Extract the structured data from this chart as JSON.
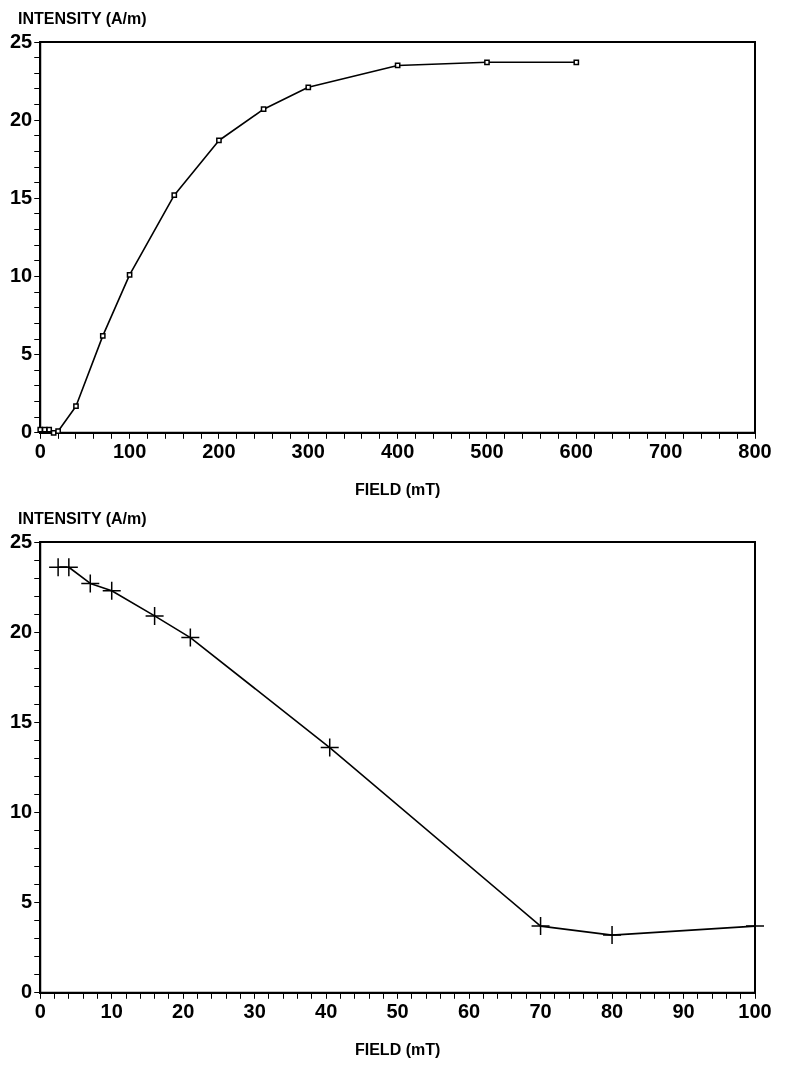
{
  "chart_data": [
    {
      "type": "line",
      "xlabel": "FIELD (mT)",
      "ylabel": "INTENSITY (A/m)",
      "marker": "square",
      "line_style": "solid",
      "grid": false,
      "legend": false,
      "x": [
        0,
        5,
        10,
        15,
        20,
        40,
        70,
        100,
        150,
        200,
        250,
        300,
        400,
        500,
        600
      ],
      "series": [
        {
          "color": "#000000",
          "values": [
            0.2,
            0.2,
            0.2,
            0.0,
            0.1,
            1.7,
            6.2,
            10.1,
            15.2,
            18.7,
            20.7,
            22.1,
            23.5,
            23.7,
            23.7
          ]
        }
      ],
      "xlim": [
        0,
        800
      ],
      "ylim": [
        0,
        25
      ],
      "xticks": [
        0,
        {
          "value": 20,
          "label": null
        },
        {
          "value": 40,
          "label": null
        },
        {
          "value": 60,
          "label": null
        },
        {
          "value": 80,
          "label": null
        },
        100,
        {
          "value": 120,
          "label": null
        },
        {
          "value": 140,
          "label": null
        },
        {
          "value": 160,
          "label": null
        },
        {
          "value": 180,
          "label": null
        },
        200,
        {
          "value": 220,
          "label": null
        },
        {
          "value": 240,
          "label": null
        },
        {
          "value": 260,
          "label": null
        },
        {
          "value": 280,
          "label": null
        },
        300,
        {
          "value": 320,
          "label": null
        },
        {
          "value": 340,
          "label": null
        },
        {
          "value": 360,
          "label": null
        },
        {
          "value": 380,
          "label": null
        },
        400,
        {
          "value": 420,
          "label": null
        },
        {
          "value": 440,
          "label": null
        },
        {
          "value": 460,
          "label": null
        },
        {
          "value": 480,
          "label": null
        },
        500,
        {
          "value": 520,
          "label": null
        },
        {
          "value": 540,
          "label": null
        },
        {
          "value": 560,
          "label": null
        },
        {
          "value": 580,
          "label": null
        },
        600,
        {
          "value": 620,
          "label": null
        },
        {
          "value": 640,
          "label": null
        },
        {
          "value": 660,
          "label": null
        },
        {
          "value": 680,
          "label": null
        },
        700,
        {
          "value": 720,
          "label": null
        },
        {
          "value": 740,
          "label": null
        },
        {
          "value": 760,
          "label": null
        },
        {
          "value": 780,
          "label": null
        },
        800
      ],
      "yticks": [
        0,
        {
          "value": 1,
          "label": null
        },
        {
          "value": 2,
          "label": null
        },
        {
          "value": 3,
          "label": null
        },
        {
          "value": 4,
          "label": null
        },
        5,
        {
          "value": 6,
          "label": null
        },
        {
          "value": 7,
          "label": null
        },
        {
          "value": 8,
          "label": null
        },
        {
          "value": 9,
          "label": null
        },
        10,
        {
          "value": 11,
          "label": null
        },
        {
          "value": 12,
          "label": null
        },
        {
          "value": 13,
          "label": null
        },
        {
          "value": 14,
          "label": null
        },
        15,
        {
          "value": 16,
          "label": null
        },
        {
          "value": 17,
          "label": null
        },
        {
          "value": 18,
          "label": null
        },
        {
          "value": 19,
          "label": null
        },
        20,
        {
          "value": 21,
          "label": null
        },
        {
          "value": 22,
          "label": null
        },
        {
          "value": 23,
          "label": null
        },
        {
          "value": 24,
          "label": null
        },
        25
      ]
    },
    {
      "type": "line",
      "xlabel": "FIELD (mT)",
      "ylabel": "INTENSITY (A/m)",
      "marker": "cross",
      "line_style": "solid",
      "grid": false,
      "legend": false,
      "x": [
        2.5,
        4,
        7,
        10,
        16,
        21,
        40.5,
        70,
        80,
        100
      ],
      "series": [
        {
          "color": "#000000",
          "values": [
            23.6,
            23.6,
            22.7,
            22.3,
            20.9,
            19.7,
            13.6,
            3.7,
            3.2,
            3.7
          ]
        }
      ],
      "xlim": [
        0,
        100
      ],
      "ylim": [
        0,
        25
      ],
      "xticks": [
        0,
        {
          "value": 2,
          "label": null
        },
        {
          "value": 4,
          "label": null
        },
        {
          "value": 6,
          "label": null
        },
        {
          "value": 8,
          "label": null
        },
        10,
        {
          "value": 12,
          "label": null
        },
        {
          "value": 14,
          "label": null
        },
        {
          "value": 16,
          "label": null
        },
        {
          "value": 18,
          "label": null
        },
        20,
        {
          "value": 22,
          "label": null
        },
        {
          "value": 24,
          "label": null
        },
        {
          "value": 26,
          "label": null
        },
        {
          "value": 28,
          "label": null
        },
        30,
        {
          "value": 32,
          "label": null
        },
        {
          "value": 34,
          "label": null
        },
        {
          "value": 36,
          "label": null
        },
        {
          "value": 38,
          "label": null
        },
        40,
        {
          "value": 42,
          "label": null
        },
        {
          "value": 44,
          "label": null
        },
        {
          "value": 46,
          "label": null
        },
        {
          "value": 48,
          "label": null
        },
        50,
        {
          "value": 52,
          "label": null
        },
        {
          "value": 54,
          "label": null
        },
        {
          "value": 56,
          "label": null
        },
        {
          "value": 58,
          "label": null
        },
        60,
        {
          "value": 62,
          "label": null
        },
        {
          "value": 64,
          "label": null
        },
        {
          "value": 66,
          "label": null
        },
        {
          "value": 68,
          "label": null
        },
        70,
        {
          "value": 72,
          "label": null
        },
        {
          "value": 74,
          "label": null
        },
        {
          "value": 76,
          "label": null
        },
        {
          "value": 78,
          "label": null
        },
        80,
        {
          "value": 82,
          "label": null
        },
        {
          "value": 84,
          "label": null
        },
        {
          "value": 86,
          "label": null
        },
        {
          "value": 88,
          "label": null
        },
        90,
        {
          "value": 92,
          "label": null
        },
        {
          "value": 94,
          "label": null
        },
        {
          "value": 96,
          "label": null
        },
        {
          "value": 98,
          "label": null
        },
        100
      ],
      "yticks": [
        0,
        {
          "value": 1,
          "label": null
        },
        {
          "value": 2,
          "label": null
        },
        {
          "value": 3,
          "label": null
        },
        {
          "value": 4,
          "label": null
        },
        5,
        {
          "value": 6,
          "label": null
        },
        {
          "value": 7,
          "label": null
        },
        {
          "value": 8,
          "label": null
        },
        {
          "value": 9,
          "label": null
        },
        10,
        {
          "value": 11,
          "label": null
        },
        {
          "value": 12,
          "label": null
        },
        {
          "value": 13,
          "label": null
        },
        {
          "value": 14,
          "label": null
        },
        15,
        {
          "value": 16,
          "label": null
        },
        {
          "value": 17,
          "label": null
        },
        {
          "value": 18,
          "label": null
        },
        {
          "value": 19,
          "label": null
        },
        20,
        {
          "value": 21,
          "label": null
        },
        {
          "value": 22,
          "label": null
        },
        {
          "value": 23,
          "label": null
        },
        {
          "value": 24,
          "label": null
        },
        25
      ]
    }
  ]
}
